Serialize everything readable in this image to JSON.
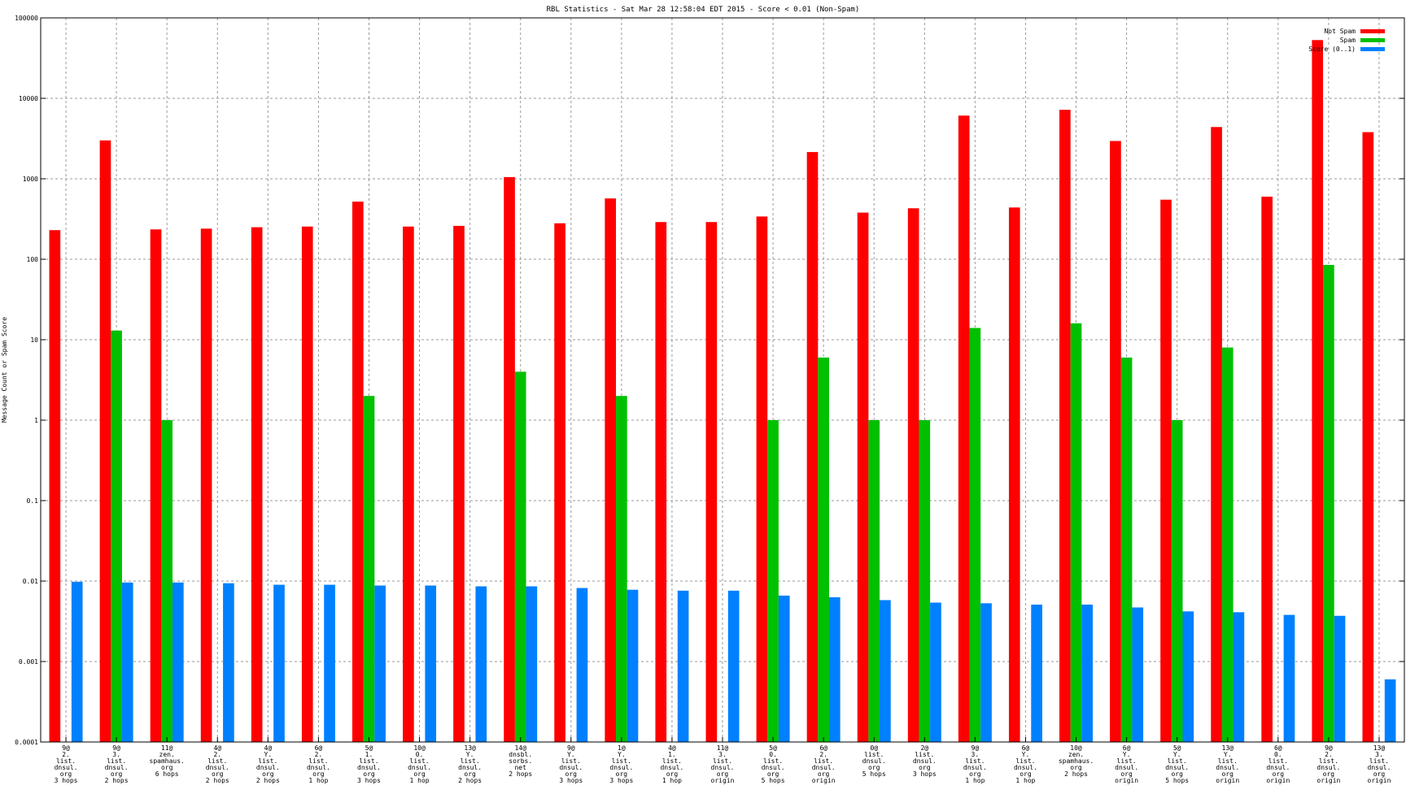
{
  "chart_data": {
    "type": "bar",
    "title": "RBL Statistics - Sat Mar 28 12:58:04 EDT 2015 - Score < 0.01 (Non-Spam)",
    "ylabel": "Message Count or Spam Score",
    "xlabel": "",
    "yscale": "log",
    "ylim": [
      0.0001,
      100000
    ],
    "grid": true,
    "legend_position": "top-right",
    "y_ticks": [
      "0.0001",
      "0.001",
      "0.01",
      "0.1",
      "1",
      "10",
      "100",
      "1000",
      "10000",
      "100000"
    ],
    "categories": [
      [
        "9@",
        "2.",
        "list.",
        "dnsul.",
        "org",
        "3 hops"
      ],
      [
        "9@",
        "3.",
        "list.",
        "dnsul.",
        "org",
        "2 hops"
      ],
      [
        "11@",
        "zen.",
        "spamhaus.",
        "org",
        "6 hops"
      ],
      [
        "4@",
        "2.",
        "list.",
        "dnsul.",
        "org",
        "2 hops"
      ],
      [
        "4@",
        "Y.",
        "list.",
        "dnsul.",
        "org",
        "2 hops"
      ],
      [
        "6@",
        "2.",
        "list.",
        "dnsul.",
        "org",
        "1 hop"
      ],
      [
        "5@",
        "1.",
        "list.",
        "dnsul.",
        "org",
        "3 hops"
      ],
      [
        "10@",
        "0.",
        "list.",
        "dnsul.",
        "org",
        "1 hop"
      ],
      [
        "13@",
        "Y.",
        "list.",
        "dnsul.",
        "org",
        "2 hops"
      ],
      [
        "14@",
        "dnsbl.",
        "sorbs.",
        "net",
        "2 hops"
      ],
      [
        "9@",
        "Y.",
        "list.",
        "dnsul.",
        "org",
        "3 hops"
      ],
      [
        "1@",
        "Y.",
        "list.",
        "dnsul.",
        "org",
        "3 hops"
      ],
      [
        "4@",
        "1.",
        "list.",
        "dnsul.",
        "org",
        "1 hop"
      ],
      [
        "11@",
        "3.",
        "list.",
        "dnsul.",
        "org",
        "origin"
      ],
      [
        "5@",
        "0.",
        "list.",
        "dnsul.",
        "org",
        "5 hops"
      ],
      [
        "6@",
        "2.",
        "list.",
        "dnsul.",
        "org",
        "origin"
      ],
      [
        "0@",
        "list.",
        "dnsul.",
        "org",
        "5 hops"
      ],
      [
        "2@",
        "list.",
        "dnsul.",
        "org",
        "3 hops"
      ],
      [
        "9@",
        "3.",
        "list.",
        "dnsul.",
        "org",
        "1 hop"
      ],
      [
        "6@",
        "Y.",
        "list.",
        "dnsul.",
        "org",
        "1 hop"
      ],
      [
        "10@",
        "zen.",
        "spamhaus.",
        "org",
        "2 hops"
      ],
      [
        "6@",
        "Y.",
        "list.",
        "dnsul.",
        "org",
        "origin"
      ],
      [
        "5@",
        "Y.",
        "list.",
        "dnsul.",
        "org",
        "5 hops"
      ],
      [
        "13@",
        "Y.",
        "list.",
        "dnsul.",
        "org",
        "origin"
      ],
      [
        "6@",
        "0.",
        "list.",
        "dnsul.",
        "org",
        "origin"
      ],
      [
        "9@",
        "2.",
        "list.",
        "dnsul.",
        "org",
        "origin"
      ],
      [
        "13@",
        "3.",
        "list.",
        "dnsul.",
        "org",
        "origin"
      ]
    ],
    "series": [
      {
        "name": "Not Spam",
        "color": "#ff0000",
        "values": [
          230,
          3000,
          235,
          240,
          250,
          255,
          520,
          255,
          260,
          1050,
          280,
          570,
          290,
          290,
          340,
          2150,
          380,
          430,
          6100,
          440,
          7200,
          2950,
          550,
          4400,
          600,
          53000,
          3800
        ]
      },
      {
        "name": "Spam",
        "color": "#00c000",
        "values": [
          null,
          13,
          1,
          null,
          null,
          null,
          2,
          null,
          null,
          4,
          null,
          2,
          null,
          null,
          1,
          6,
          1,
          1,
          14,
          null,
          16,
          6,
          1,
          8,
          null,
          85,
          null
        ]
      },
      {
        "name": "Score (0..1)",
        "color": "#0080ff",
        "values": [
          0.0098,
          0.0096,
          0.0096,
          0.0094,
          0.009,
          0.009,
          0.0088,
          0.0088,
          0.0086,
          0.0086,
          0.0082,
          0.0078,
          0.0076,
          0.0076,
          0.0066,
          0.0063,
          0.0058,
          0.0054,
          0.0053,
          0.0051,
          0.0051,
          0.0047,
          0.0042,
          0.0041,
          0.0038,
          0.0037,
          0.0006
        ]
      }
    ]
  }
}
